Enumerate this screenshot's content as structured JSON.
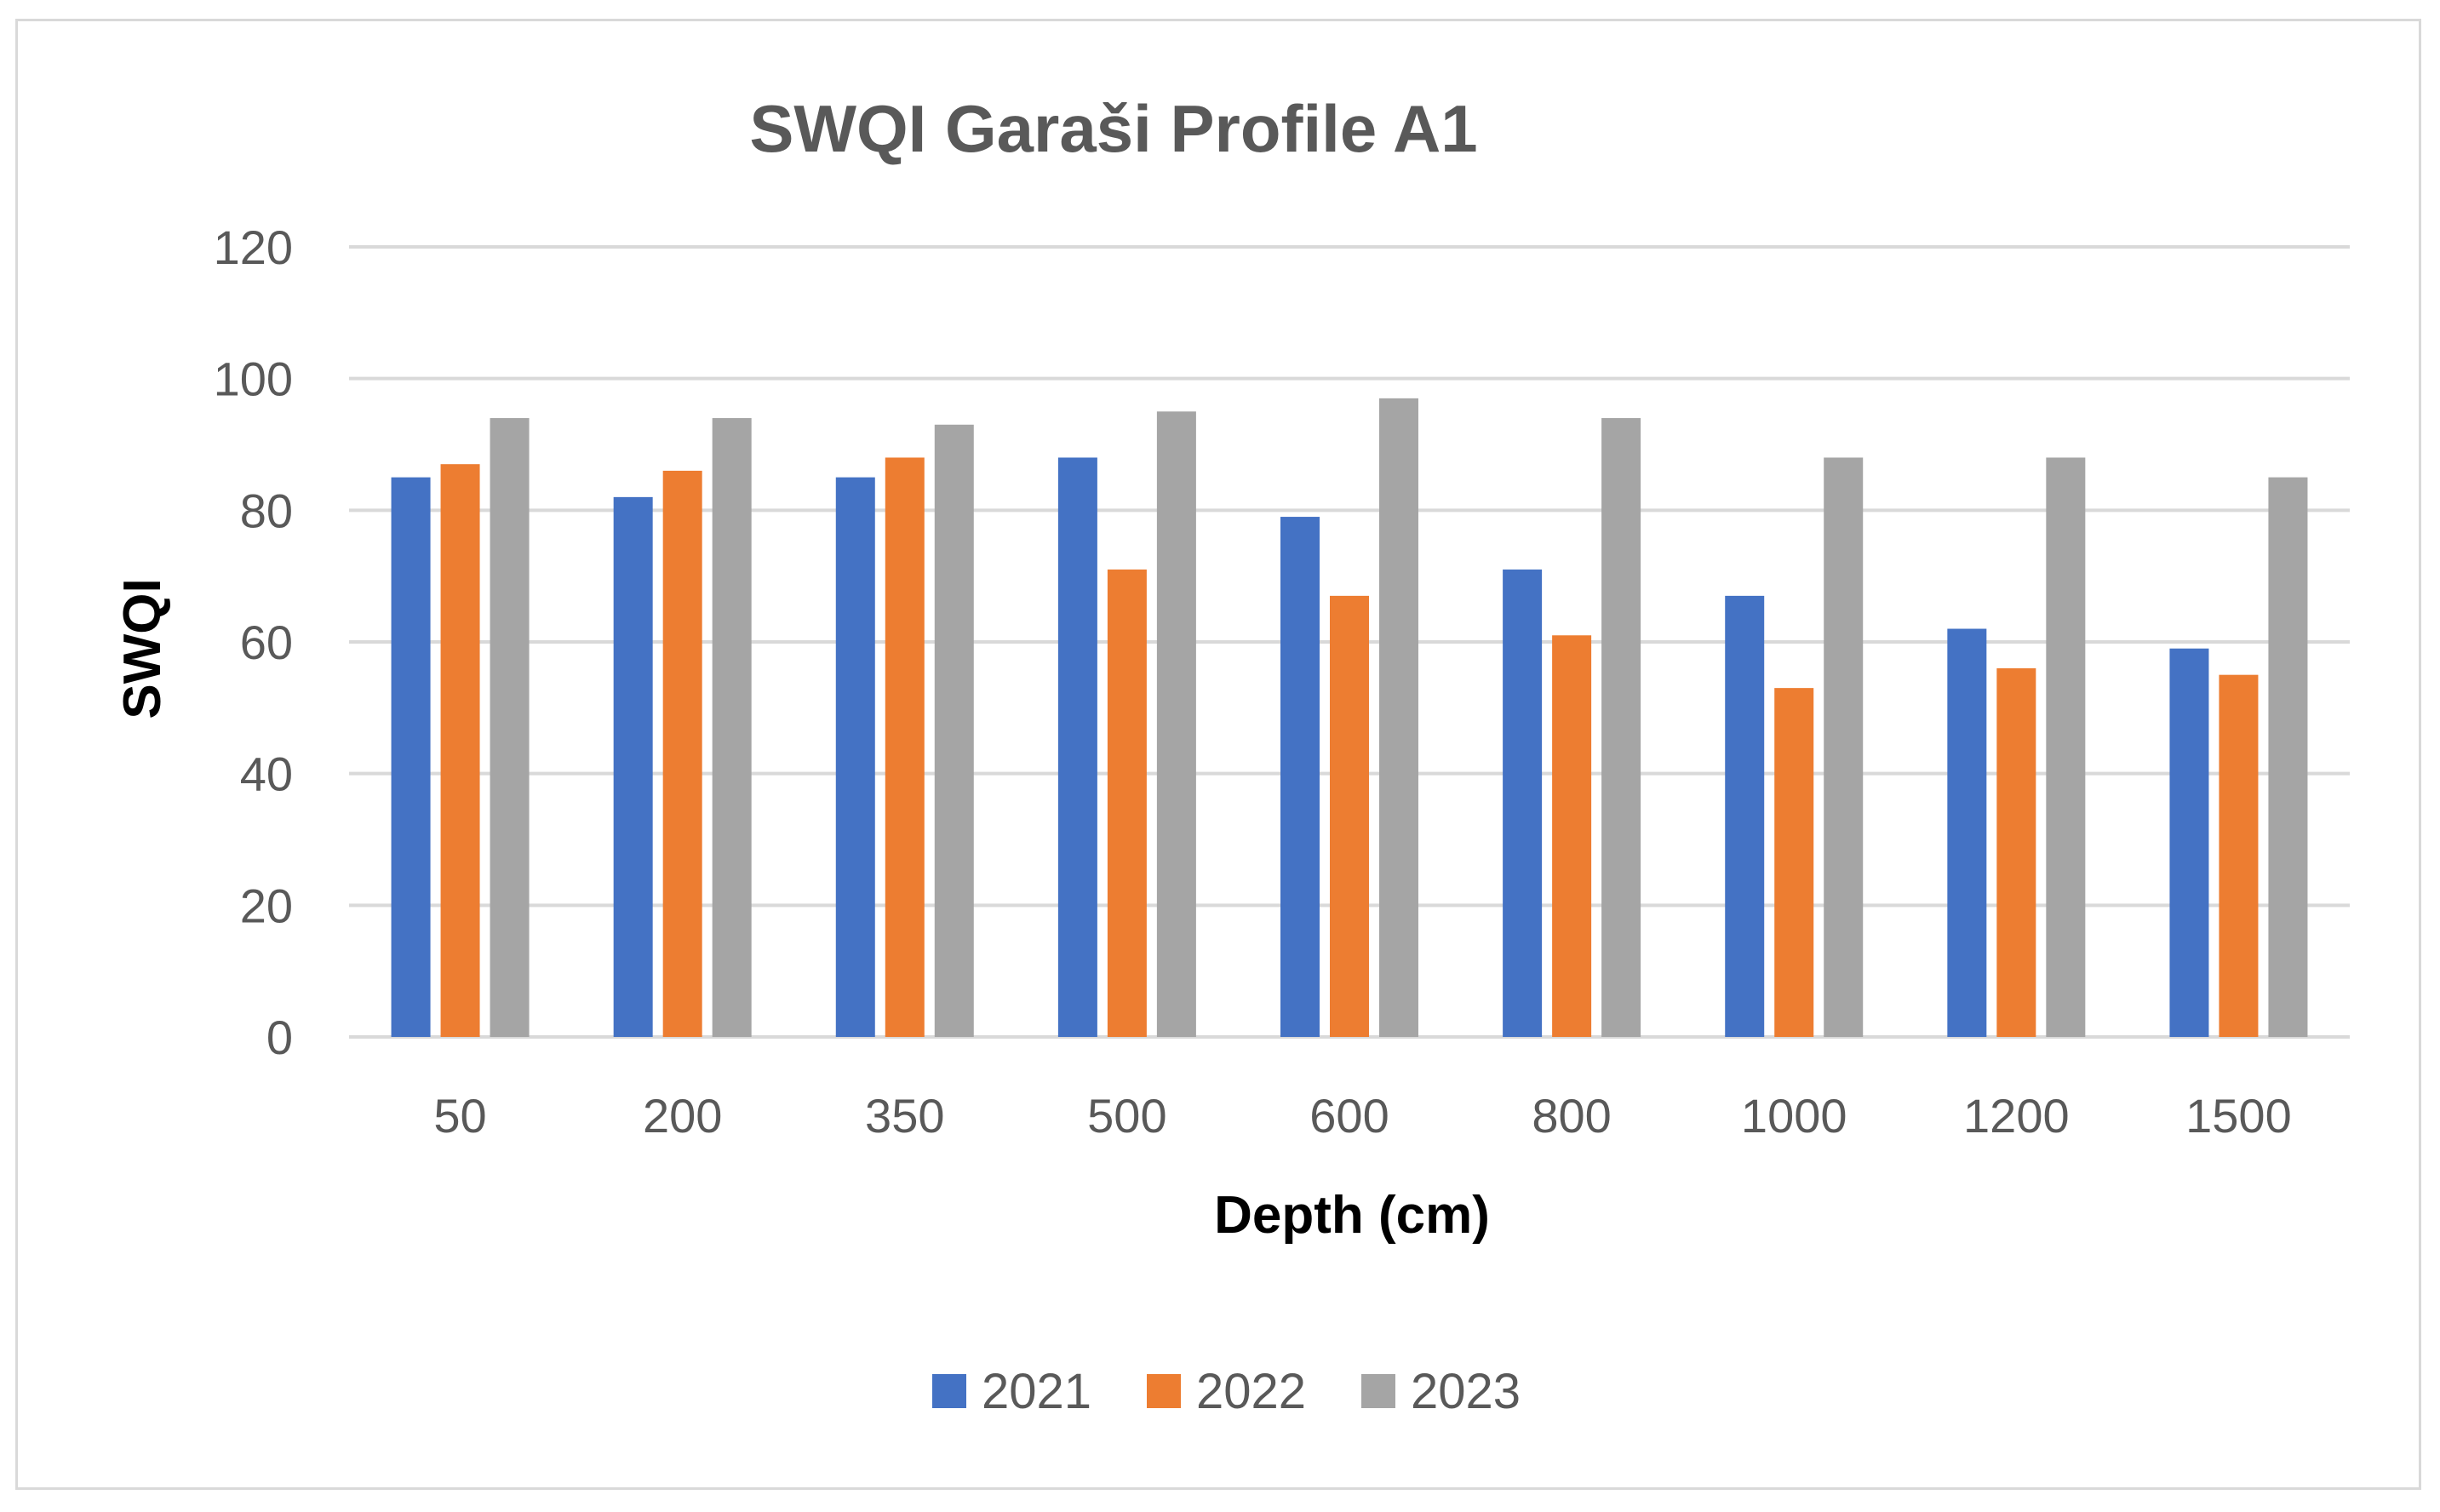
{
  "chart_data": {
    "type": "bar",
    "title": "SWQI Garaši  Profile A1",
    "xlabel": "Depth (cm)",
    "ylabel": "SWQI",
    "categories": [
      "50",
      "200",
      "350",
      "500",
      "600",
      "800",
      "1000",
      "1200",
      "1500"
    ],
    "series": [
      {
        "name": "2021",
        "color": "#4472c4",
        "values": [
          85,
          82,
          85,
          88,
          79,
          71,
          67,
          62,
          59
        ]
      },
      {
        "name": "2022",
        "color": "#ed7d31",
        "values": [
          87,
          86,
          88,
          71,
          67,
          61,
          53,
          56,
          55
        ]
      },
      {
        "name": "2023",
        "color": "#a5a5a5",
        "values": [
          94,
          94,
          93,
          95,
          97,
          94,
          88,
          88,
          85
        ]
      }
    ],
    "ylim": [
      0,
      120
    ],
    "yticks": [
      0,
      20,
      40,
      60,
      80,
      100,
      120
    ],
    "grid": true,
    "legend_position": "bottom",
    "gridline_color": "#d9d9d9"
  }
}
